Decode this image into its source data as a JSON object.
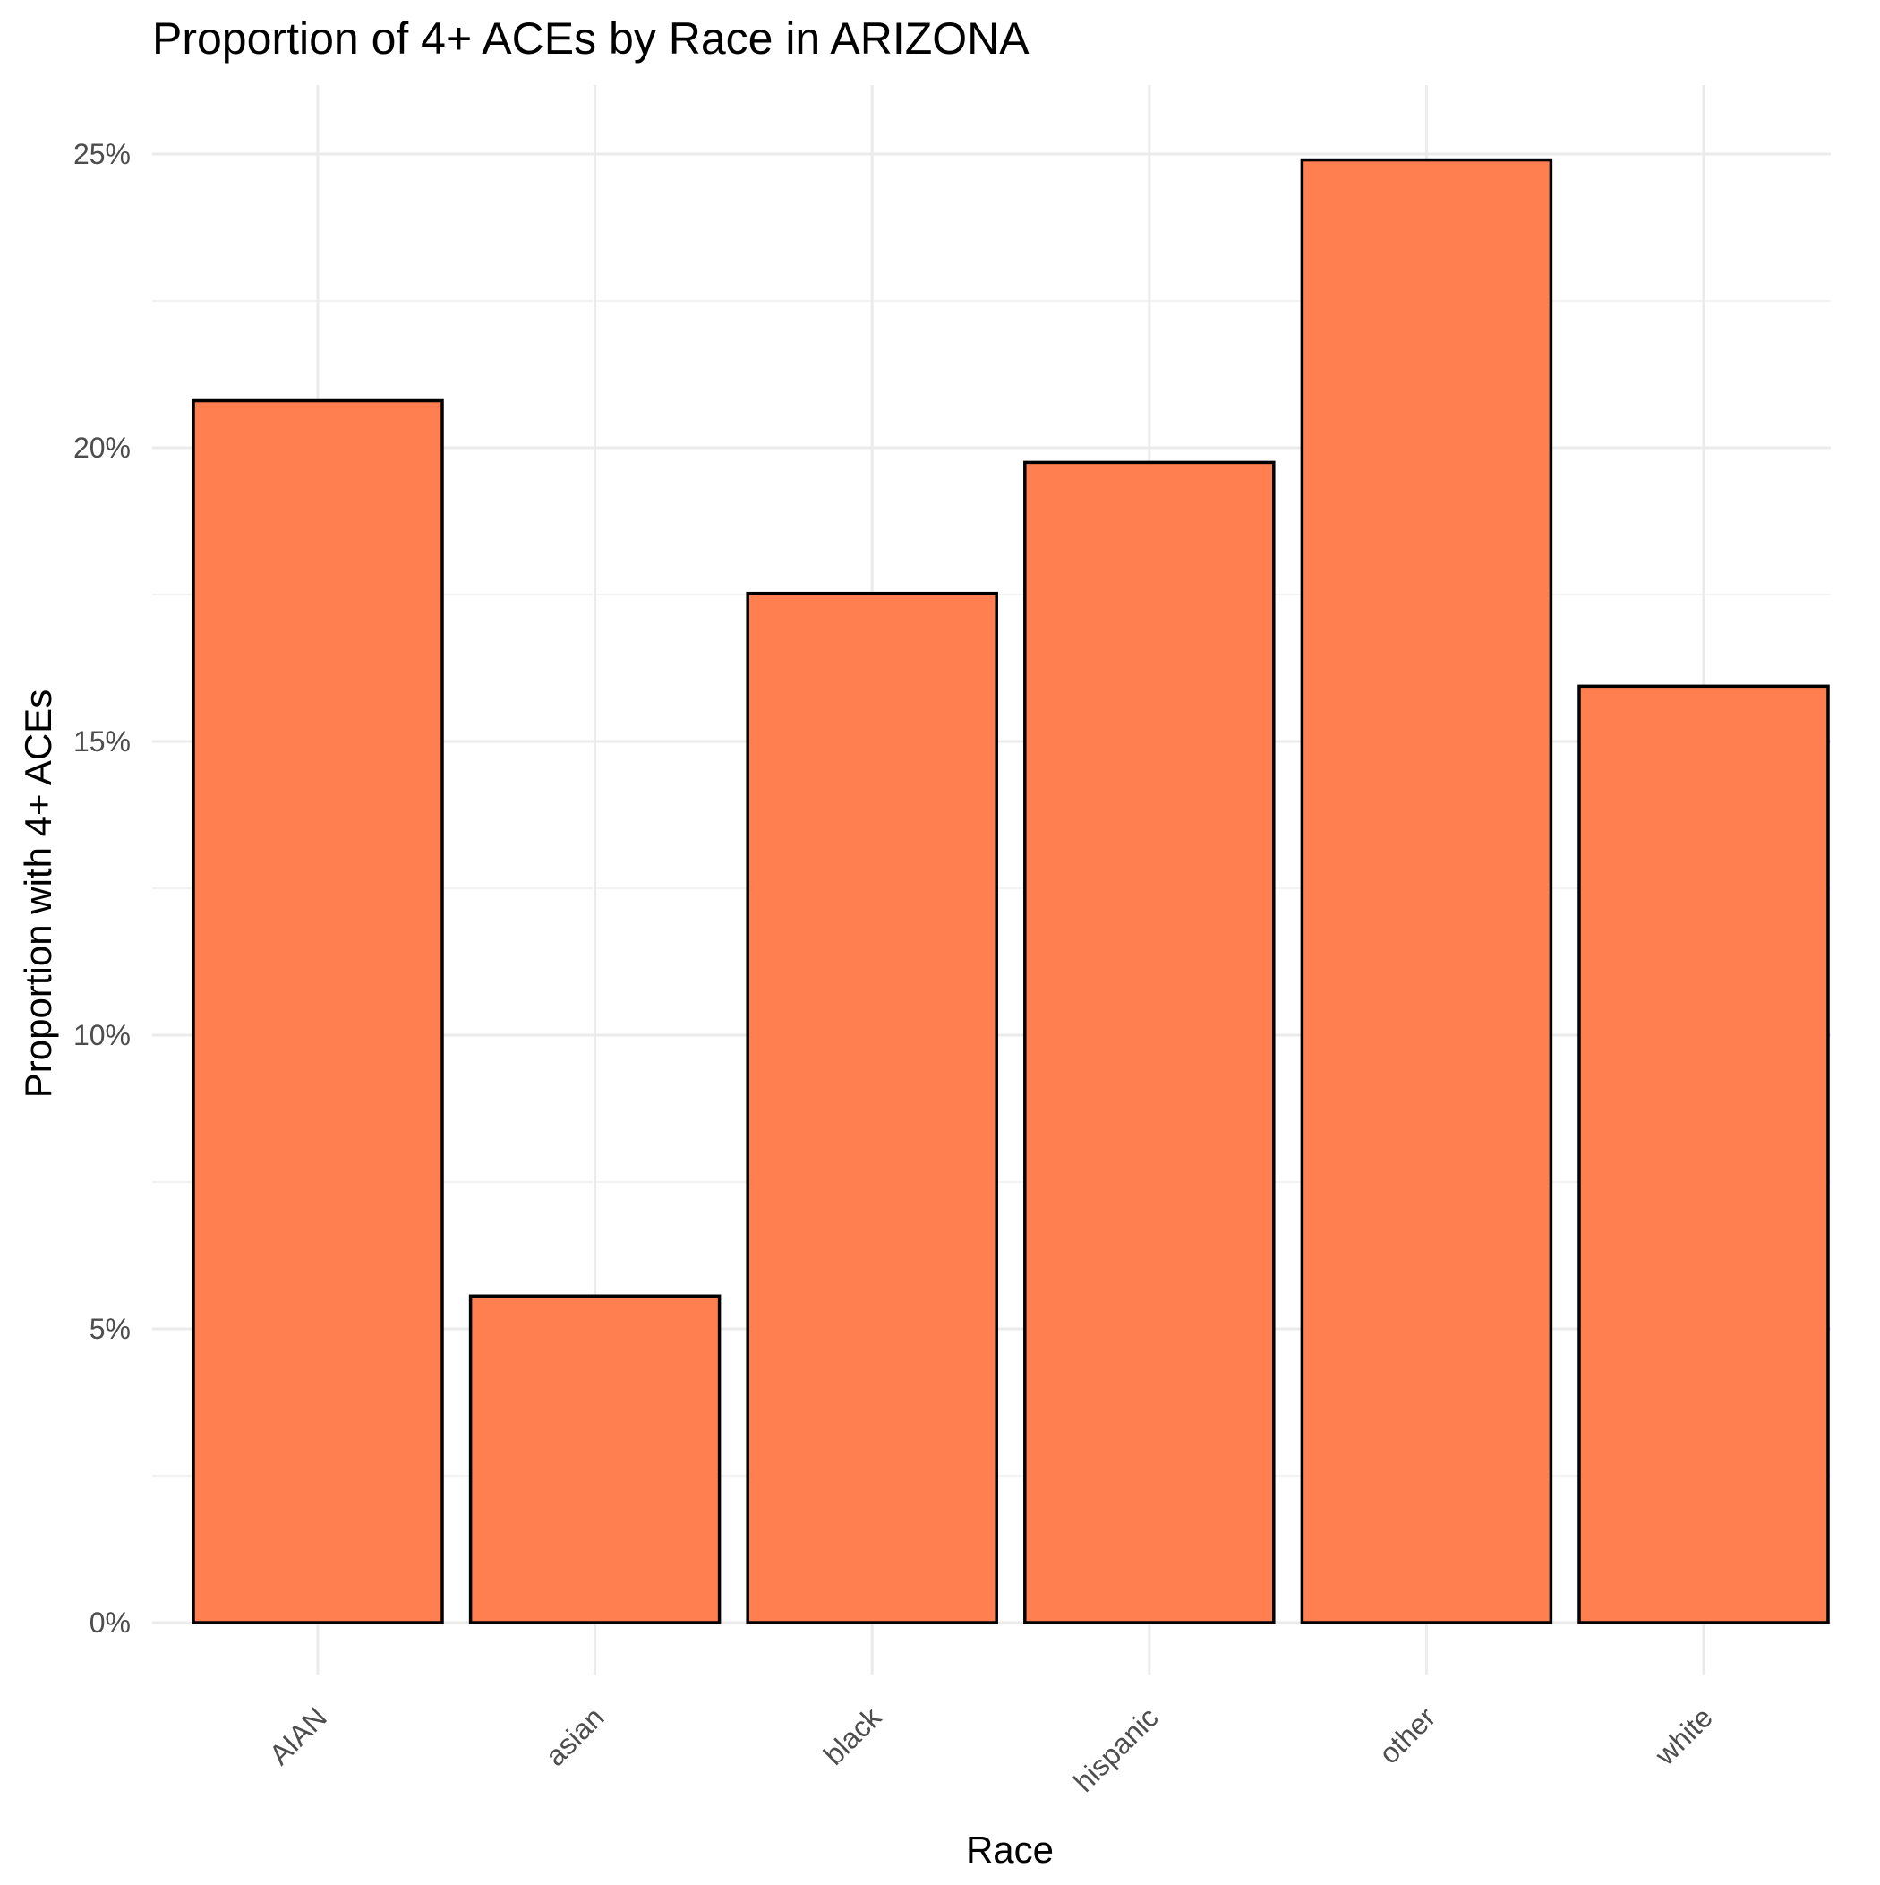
{
  "chart_data": {
    "type": "bar",
    "title": "Proportion of 4+ ACEs by Race in ARIZONA",
    "xlabel": "Race",
    "ylabel": "Proportion with 4+ ACEs",
    "categories": [
      "AIAN",
      "asian",
      "black",
      "hispanic",
      "other",
      "white"
    ],
    "values": [
      0.208,
      0.0556,
      0.1752,
      0.1975,
      0.249,
      0.1594
    ],
    "ylim": [
      0,
      0.26
    ],
    "yticks": [
      0,
      0.05,
      0.1,
      0.15,
      0.2,
      0.25
    ],
    "ytick_labels": [
      "0%",
      "5%",
      "10%",
      "15%",
      "20%",
      "25%"
    ],
    "grid": true,
    "legend": "none",
    "colors": {
      "bar_fill": "#ff7f50",
      "bar_outline": "#000000"
    }
  }
}
